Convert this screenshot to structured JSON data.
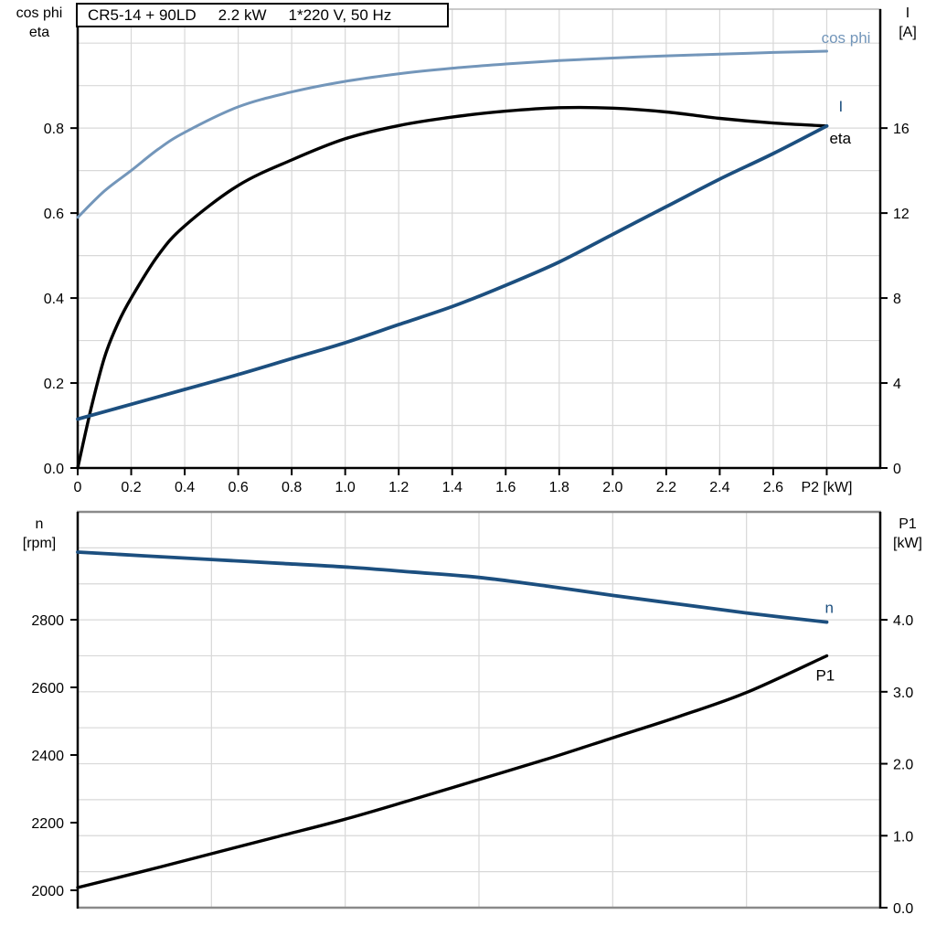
{
  "page": {
    "background": "#ffffff"
  },
  "title": {
    "parts": [
      "CR5-14 + 90LD",
      "2.2 kW",
      "1*220 V, 50 Hz"
    ]
  },
  "colors": {
    "black": "#000000",
    "dark_blue": "#1c4f7f",
    "light_blue": "#7396ba",
    "grid": "#d8d8d8",
    "gray_border": "#8a8a8a",
    "light_border": "#b8b8b8"
  },
  "axis_corner_labels": {
    "top_left_line1": "cos phi",
    "top_left_line2": "eta",
    "top_right_line1": "I",
    "top_right_line2": "[A]",
    "bottom_left_line1": "n",
    "bottom_left_line2": "[rpm]",
    "bottom_right_line1": "P1",
    "bottom_right_line2": "[kW]"
  },
  "chart_data": [
    {
      "type": "line",
      "title": "CR5-14 + 90LD   2.2 kW   1*220 V, 50 Hz",
      "x_axis": {
        "label": "P2 [kW]",
        "min": 0,
        "max": 3.0,
        "grid_step": 0.2,
        "ticks": [
          {
            "v": 0,
            "label": "0"
          },
          {
            "v": 0.2,
            "label": "0.2"
          },
          {
            "v": 0.4,
            "label": "0.4"
          },
          {
            "v": 0.6,
            "label": "0.6"
          },
          {
            "v": 0.8,
            "label": "0.8"
          },
          {
            "v": 1.0,
            "label": "1.0"
          },
          {
            "v": 1.2,
            "label": "1.2"
          },
          {
            "v": 1.4,
            "label": "1.4"
          },
          {
            "v": 1.6,
            "label": "1.6"
          },
          {
            "v": 1.8,
            "label": "1.8"
          },
          {
            "v": 2.0,
            "label": "2.0"
          },
          {
            "v": 2.2,
            "label": "2.2"
          },
          {
            "v": 2.4,
            "label": "2.4"
          },
          {
            "v": 2.6,
            "label": "2.6"
          },
          {
            "v": 2.8,
            "label": "P2 [kW]"
          }
        ]
      },
      "y_left": {
        "label": "cos phi / eta",
        "min": 0,
        "max": 1.08,
        "grid_step": 0.1,
        "ticks": [
          {
            "v": 0.0,
            "label": "0.0"
          },
          {
            "v": 0.2,
            "label": "0.2"
          },
          {
            "v": 0.4,
            "label": "0.4"
          },
          {
            "v": 0.6,
            "label": "0.6"
          },
          {
            "v": 0.8,
            "label": "0.8"
          }
        ]
      },
      "y_right": {
        "label": "I [A]",
        "min": 0,
        "max": 21.6,
        "ticks": [
          {
            "v": 0,
            "label": "0"
          },
          {
            "v": 4,
            "label": "4"
          },
          {
            "v": 8,
            "label": "8"
          },
          {
            "v": 12,
            "label": "12"
          },
          {
            "v": 16,
            "label": "16"
          }
        ]
      },
      "series": [
        {
          "name": "cos phi",
          "axis": "left",
          "color_key": "light_blue",
          "width": 3,
          "label_anchor": "end",
          "label_dx": 48,
          "label_dy": -9,
          "x": [
            0,
            0.1,
            0.2,
            0.3,
            0.4,
            0.6,
            0.8,
            1.0,
            1.2,
            1.4,
            1.6,
            1.8,
            2.0,
            2.2,
            2.4,
            2.6,
            2.8
          ],
          "v": [
            0.59,
            0.652,
            0.7,
            0.75,
            0.79,
            0.85,
            0.885,
            0.91,
            0.928,
            0.941,
            0.951,
            0.959,
            0.965,
            0.97,
            0.974,
            0.978,
            0.981
          ]
        },
        {
          "name": "eta",
          "axis": "left",
          "color_key": "black",
          "width": 3.4,
          "label_anchor": "start",
          "label_dx": 3,
          "label_dy": 19,
          "x": [
            0,
            0.05,
            0.1,
            0.15,
            0.2,
            0.3,
            0.4,
            0.6,
            0.8,
            1.0,
            1.2,
            1.4,
            1.6,
            1.8,
            2.0,
            2.2,
            2.4,
            2.6,
            2.8
          ],
          "v": [
            0,
            0.14,
            0.26,
            0.34,
            0.4,
            0.5,
            0.57,
            0.665,
            0.725,
            0.775,
            0.806,
            0.826,
            0.84,
            0.848,
            0.847,
            0.838,
            0.823,
            0.812,
            0.805
          ]
        },
        {
          "name": "I",
          "axis": "right",
          "color_key": "dark_blue",
          "width": 3.8,
          "label_anchor": "start",
          "label_dx": 13,
          "label_dy": -16,
          "x": [
            0,
            0.2,
            0.4,
            0.6,
            0.8,
            1.0,
            1.2,
            1.4,
            1.6,
            1.8,
            2.0,
            2.2,
            2.4,
            2.6,
            2.8
          ],
          "v": [
            2.3,
            3.0,
            3.7,
            4.4,
            5.15,
            5.9,
            6.75,
            7.6,
            8.6,
            9.7,
            11.0,
            12.3,
            13.6,
            14.8,
            16.1
          ]
        }
      ]
    },
    {
      "type": "line",
      "title": "",
      "x_axis": {
        "label": "",
        "min": 0,
        "max": 3.0,
        "grid_step": 0.5,
        "ticks": []
      },
      "y_left": {
        "label": "n [rpm]",
        "min": 1948.6,
        "max": 3118.9,
        "ticks": [
          {
            "v": 2000,
            "label": "2000"
          },
          {
            "v": 2200,
            "label": "2200"
          },
          {
            "v": 2400,
            "label": "2400"
          },
          {
            "v": 2600,
            "label": "2600"
          },
          {
            "v": 2800,
            "label": "2800"
          }
        ]
      },
      "y_right": {
        "label": "P1 [kW]",
        "min": 0,
        "max": 5.5,
        "grid_step": 0.5,
        "ticks": [
          {
            "v": 0,
            "label": "0.0"
          },
          {
            "v": 1,
            "label": "1.0"
          },
          {
            "v": 2,
            "label": "2.0"
          },
          {
            "v": 3,
            "label": "3.0"
          },
          {
            "v": 4,
            "label": "4.0"
          }
        ]
      },
      "series": [
        {
          "name": "n",
          "axis": "left",
          "color_key": "dark_blue",
          "width": 3.8,
          "label_anchor": "start",
          "label_dx": -2,
          "label_dy": -10,
          "x": [
            0,
            0.25,
            0.5,
            0.75,
            1.0,
            1.25,
            1.5,
            1.75,
            2.0,
            2.25,
            2.5,
            2.8
          ],
          "v": [
            3000,
            2989,
            2978,
            2967,
            2956,
            2941,
            2925,
            2900,
            2872,
            2846,
            2820,
            2793
          ]
        },
        {
          "name": "P1",
          "axis": "right",
          "color_key": "black",
          "width": 3.4,
          "label_anchor": "start",
          "label_dx": -12,
          "label_dy": 27,
          "x": [
            0,
            0.25,
            0.5,
            0.75,
            1.0,
            1.25,
            1.5,
            1.75,
            2.0,
            2.25,
            2.5,
            2.8
          ],
          "v": [
            0.28,
            0.51,
            0.75,
            0.99,
            1.23,
            1.5,
            1.78,
            2.06,
            2.36,
            2.66,
            2.99,
            3.5
          ]
        }
      ]
    }
  ]
}
